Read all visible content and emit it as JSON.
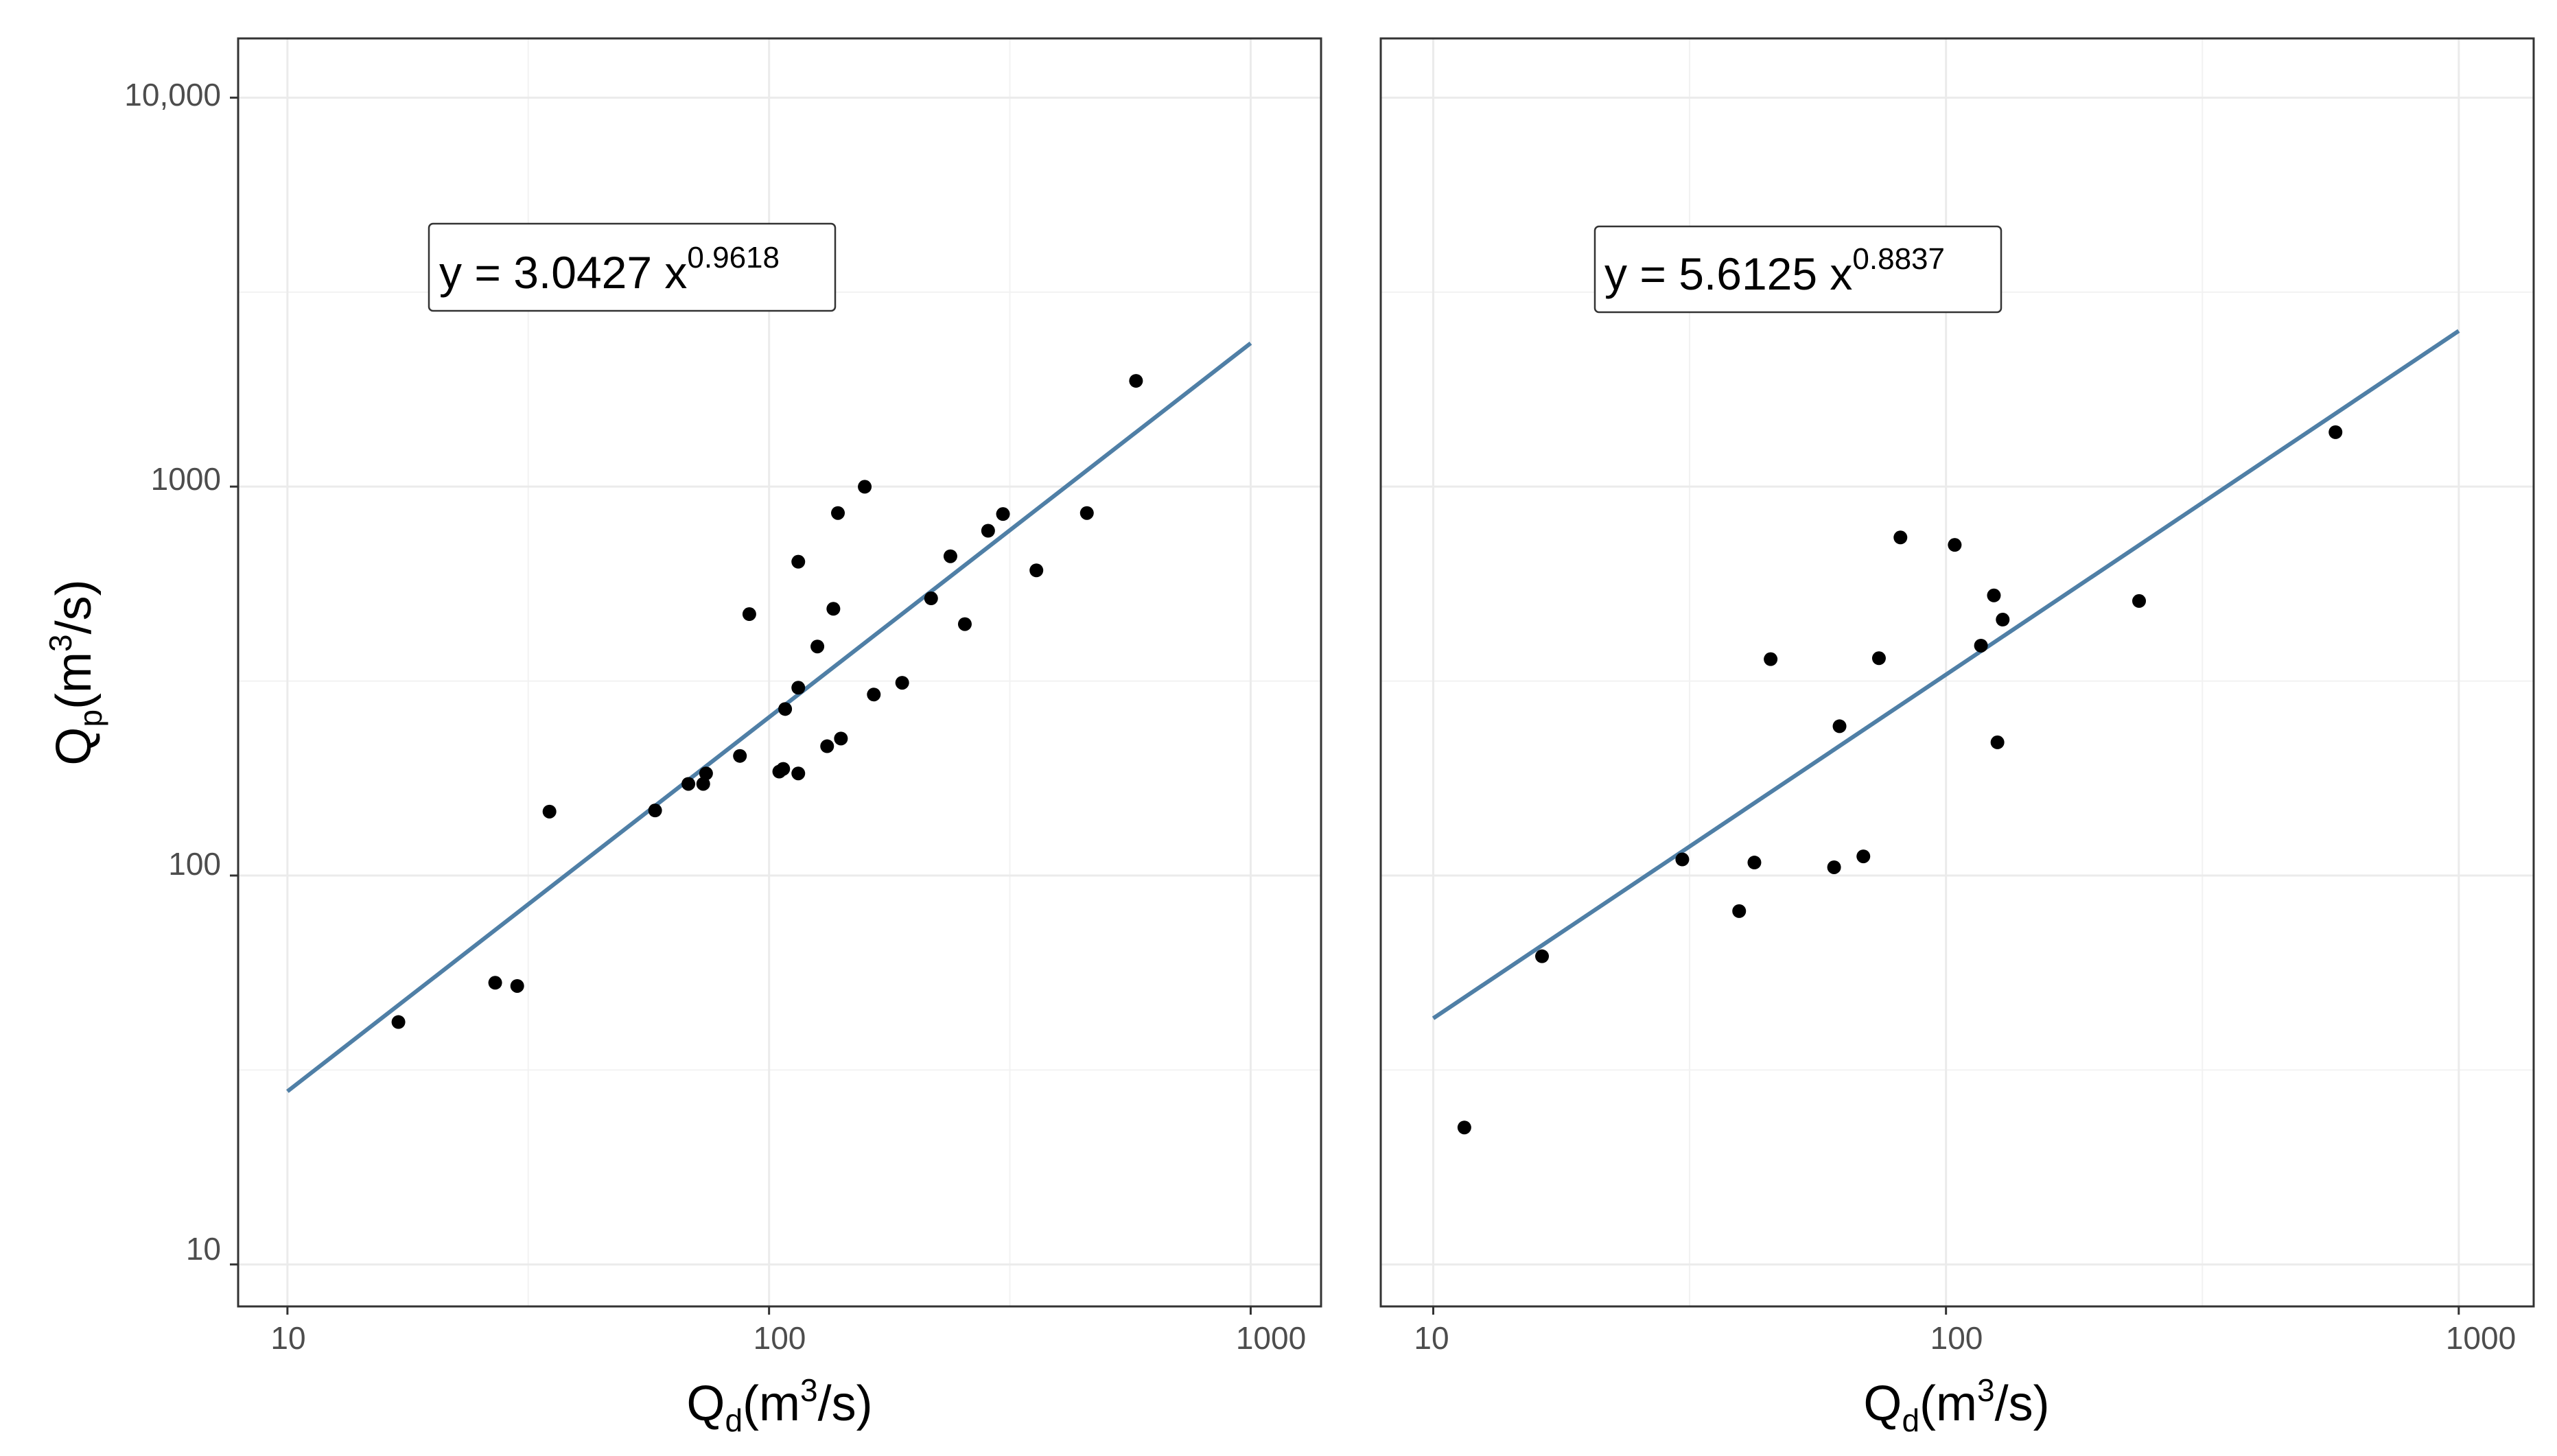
{
  "chart_data": [
    {
      "type": "scatter",
      "panel": "left",
      "x_scale": "log10",
      "y_scale": "log10",
      "xlim": [
        7.9,
        1400
      ],
      "ylim": [
        7.8,
        14200
      ],
      "x_ticks": [
        10,
        100,
        1000
      ],
      "x_tick_labels": [
        "10",
        "100",
        "1000"
      ],
      "y_ticks": [
        10,
        100,
        1000,
        10000
      ],
      "y_tick_labels": [
        "10",
        "100",
        "1000",
        "10,000"
      ],
      "xlabel": {
        "main": "Q",
        "sub": "d",
        "unit_open": "(m",
        "unit_sup": "3",
        "unit_close": "/s)"
      },
      "ylabel": {
        "main": "Q",
        "sub": "p",
        "unit_open": "(m",
        "unit_sup": "3",
        "unit_close": "/s)"
      },
      "equation": {
        "text": "y = 3.0427 x",
        "exponent": "0.9618"
      },
      "fit": {
        "coefficient": 3.0427,
        "exponent": 0.9618,
        "x_range": [
          10,
          1000
        ],
        "color": "#4f7fa6"
      },
      "point_color": "#000000",
      "points": [
        {
          "x": 17,
          "y": 42
        },
        {
          "x": 27,
          "y": 53
        },
        {
          "x": 30,
          "y": 52
        },
        {
          "x": 35,
          "y": 146
        },
        {
          "x": 58,
          "y": 147
        },
        {
          "x": 68,
          "y": 172
        },
        {
          "x": 73,
          "y": 172
        },
        {
          "x": 74,
          "y": 183
        },
        {
          "x": 87,
          "y": 203
        },
        {
          "x": 91,
          "y": 470
        },
        {
          "x": 105,
          "y": 185
        },
        {
          "x": 107,
          "y": 188
        },
        {
          "x": 108,
          "y": 268
        },
        {
          "x": 115,
          "y": 183
        },
        {
          "x": 115,
          "y": 304
        },
        {
          "x": 115,
          "y": 641
        },
        {
          "x": 126,
          "y": 388
        },
        {
          "x": 132,
          "y": 215
        },
        {
          "x": 136,
          "y": 485
        },
        {
          "x": 139,
          "y": 855
        },
        {
          "x": 141,
          "y": 225
        },
        {
          "x": 158,
          "y": 999
        },
        {
          "x": 165,
          "y": 292
        },
        {
          "x": 189,
          "y": 313
        },
        {
          "x": 217,
          "y": 516
        },
        {
          "x": 238,
          "y": 662
        },
        {
          "x": 255,
          "y": 443
        },
        {
          "x": 285,
          "y": 770
        },
        {
          "x": 306,
          "y": 850
        },
        {
          "x": 359,
          "y": 609
        },
        {
          "x": 457,
          "y": 855
        },
        {
          "x": 578,
          "y": 1870
        }
      ]
    },
    {
      "type": "scatter",
      "panel": "right",
      "x_scale": "log10",
      "y_scale": "log10",
      "xlim": [
        7.9,
        1400
      ],
      "ylim": [
        7.8,
        14200
      ],
      "x_ticks": [
        10,
        100,
        1000
      ],
      "x_tick_labels": [
        "10",
        "100",
        "1000"
      ],
      "xlabel": {
        "main": "Q",
        "sub": "d",
        "unit_open": "(m",
        "unit_sup": "3",
        "unit_close": "/s)"
      },
      "equation": {
        "text": "y = 5.6125 x",
        "exponent": "0.8837"
      },
      "fit": {
        "coefficient": 5.6125,
        "exponent": 0.8837,
        "x_range": [
          10,
          1000
        ],
        "color": "#4f7fa6"
      },
      "point_color": "#000000",
      "points": [
        {
          "x": 11.5,
          "y": 22.5
        },
        {
          "x": 16.3,
          "y": 62
        },
        {
          "x": 30.6,
          "y": 110
        },
        {
          "x": 39.5,
          "y": 81
        },
        {
          "x": 42.3,
          "y": 108
        },
        {
          "x": 45.5,
          "y": 360
        },
        {
          "x": 60.5,
          "y": 105
        },
        {
          "x": 62,
          "y": 242
        },
        {
          "x": 69,
          "y": 112
        },
        {
          "x": 74,
          "y": 362
        },
        {
          "x": 81.5,
          "y": 740
        },
        {
          "x": 104,
          "y": 708
        },
        {
          "x": 117,
          "y": 390
        },
        {
          "x": 124,
          "y": 525
        },
        {
          "x": 126,
          "y": 220
        },
        {
          "x": 129,
          "y": 455
        },
        {
          "x": 238,
          "y": 508
        },
        {
          "x": 575,
          "y": 1380
        }
      ]
    }
  ]
}
